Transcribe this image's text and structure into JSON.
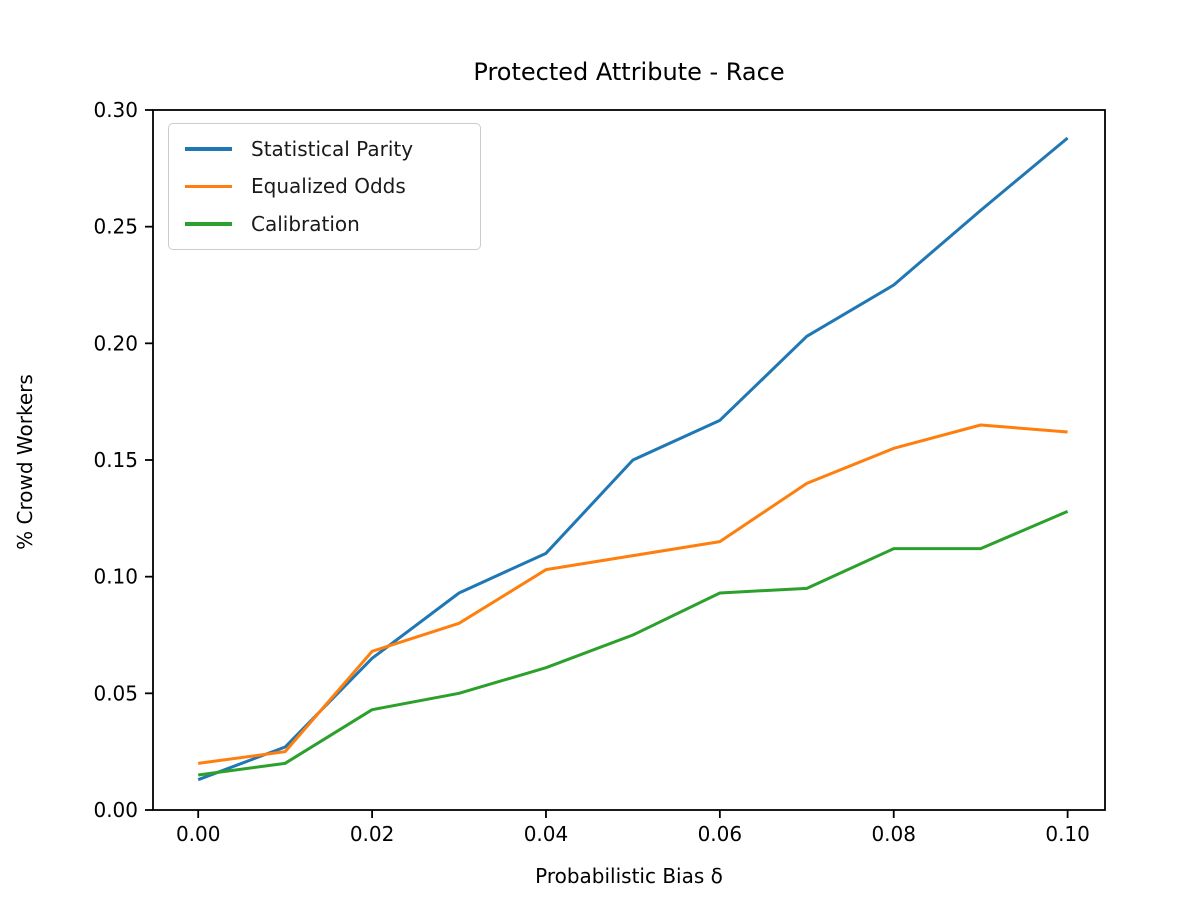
{
  "page": {
    "background": "#ffffff",
    "spine_color": "#000000",
    "tick_label_color": "#000000"
  },
  "chart_data": {
    "type": "line",
    "title": "Protected Attribute - Race",
    "xlabel": "Probabilistic Bias δ",
    "ylabel": "% Crowd Workers",
    "grid": false,
    "legend_position": "upper left",
    "xlim": [
      -0.0052,
      0.1043
    ],
    "ylim": [
      0,
      0.3
    ],
    "x": [
      0.0,
      0.01,
      0.02,
      0.03,
      0.04,
      0.05,
      0.06,
      0.07,
      0.08,
      0.09,
      0.1
    ],
    "series": [
      {
        "name": "Statistical Parity",
        "color": "#1f77b4",
        "values": [
          0.013,
          0.027,
          0.065,
          0.093,
          0.11,
          0.15,
          0.167,
          0.203,
          0.225,
          0.257,
          0.288
        ]
      },
      {
        "name": "Equalized Odds",
        "color": "#ff7f0e",
        "values": [
          0.02,
          0.025,
          0.068,
          0.08,
          0.103,
          0.109,
          0.115,
          0.14,
          0.155,
          0.165,
          0.162
        ]
      },
      {
        "name": "Calibration",
        "color": "#2ca02c",
        "values": [
          0.015,
          0.02,
          0.043,
          0.05,
          0.061,
          0.075,
          0.093,
          0.095,
          0.112,
          0.112,
          0.128
        ]
      }
    ],
    "xticks": [
      {
        "v": 0.0,
        "label": "0.00"
      },
      {
        "v": 0.02,
        "label": "0.02"
      },
      {
        "v": 0.04,
        "label": "0.04"
      },
      {
        "v": 0.06,
        "label": "0.06"
      },
      {
        "v": 0.08,
        "label": "0.08"
      },
      {
        "v": 0.1,
        "label": "0.10"
      }
    ],
    "yticks": [
      {
        "v": 0.0,
        "label": "0.00"
      },
      {
        "v": 0.05,
        "label": "0.05"
      },
      {
        "v": 0.1,
        "label": "0.10"
      },
      {
        "v": 0.15,
        "label": "0.15"
      },
      {
        "v": 0.2,
        "label": "0.20"
      },
      {
        "v": 0.25,
        "label": "0.25"
      },
      {
        "v": 0.3,
        "label": "0.30"
      }
    ]
  }
}
